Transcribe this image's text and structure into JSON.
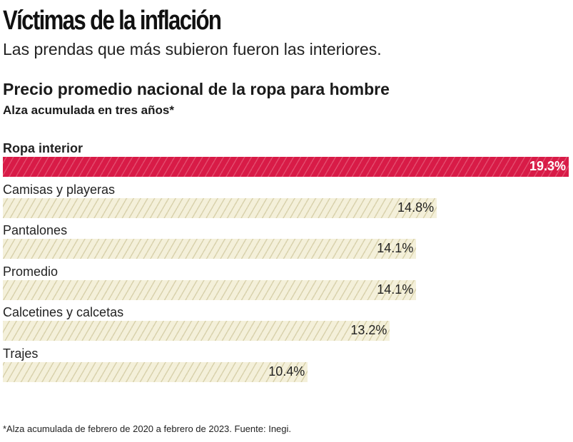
{
  "title": "Víctimas de la inflación",
  "subtitle": "Las prendas que más subieron fueron las interiores.",
  "chart_data": {
    "type": "bar",
    "orientation": "horizontal",
    "title": "Precio promedio nacional de la ropa para hombre",
    "subtitle": "Alza acumulada en tres años*",
    "categories": [
      "Ropa interior",
      "Camisas y playeras",
      "Pantalones",
      "Promedio",
      "Calcetines y calcetas",
      "Trajes"
    ],
    "values": [
      19.3,
      14.8,
      14.1,
      14.1,
      13.2,
      10.4
    ],
    "labels": [
      "19.3%",
      "14.8%",
      "14.1%",
      "14.1%",
      "13.2%",
      "10.4%"
    ],
    "unit": "%",
    "highlight": "Ropa interior",
    "colors": {
      "highlight": "#d81b47",
      "default": "#f4f0da"
    },
    "grid": false
  },
  "footnote": "*Alza acumulada de febrero de 2020 a febrero de 2023. Fuente: Inegi."
}
